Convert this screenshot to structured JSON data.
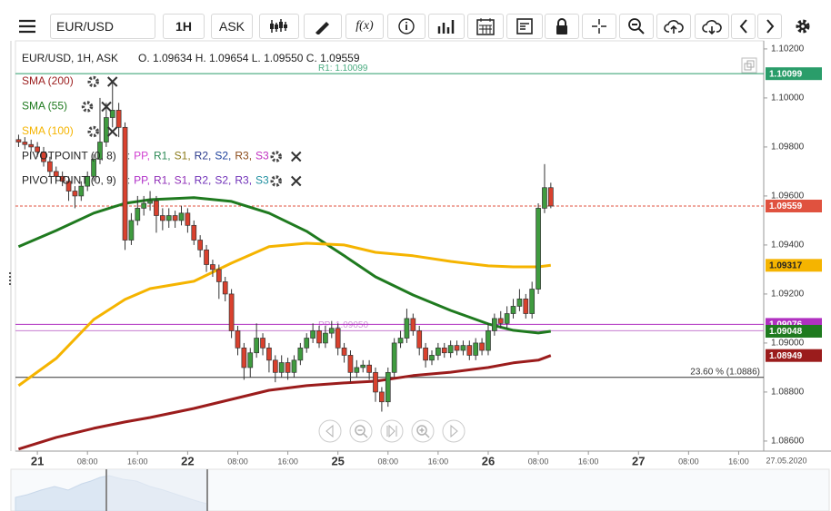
{
  "toolbar": {
    "symbol": "EUR/USD",
    "interval": "1H",
    "side": "ASK",
    "function_button": "f(x)"
  },
  "legend": {
    "symbol": "EUR/USD, 1H, ASK",
    "ohlc": "O. 1.09634 H. 1.09654 L. 1.09550 C. 1.09559"
  },
  "chart_data": {
    "type": "candlestick",
    "up_color": "#3f9b3f",
    "down_color": "#d9412e",
    "xlim": [
      -0.5,
      119
    ],
    "ylim": [
      1.08559,
      1.10233
    ],
    "xticks": [
      {
        "value": 3,
        "label": "21"
      },
      {
        "value": 11,
        "label": "08:00"
      },
      {
        "value": 19,
        "label": "16:00"
      },
      {
        "value": 27,
        "label": "22"
      },
      {
        "value": 35,
        "label": "08:00"
      },
      {
        "value": 43,
        "label": "16:00"
      },
      {
        "value": 51,
        "label": "25"
      },
      {
        "value": 59,
        "label": "08:00"
      },
      {
        "value": 67,
        "label": "16:00"
      },
      {
        "value": 75,
        "label": "26"
      },
      {
        "value": 83,
        "label": "08:00"
      },
      {
        "value": 91,
        "label": "16:00"
      },
      {
        "value": 99,
        "label": "27"
      },
      {
        "value": 107,
        "label": "08:00"
      },
      {
        "value": 115,
        "label": "16:00"
      }
    ],
    "date_label": "27.05.2020",
    "yticks": [
      {
        "value": 1.102,
        "label": "1.10200"
      },
      {
        "value": 1.1,
        "label": "1.10000"
      },
      {
        "value": 1.098,
        "label": "1.09800"
      },
      {
        "value": 1.096,
        "label": "1.09600"
      },
      {
        "value": 1.094,
        "label": "1.09400"
      },
      {
        "value": 1.092,
        "label": "1.09200"
      },
      {
        "value": 1.09,
        "label": "1.09000"
      },
      {
        "value": 1.088,
        "label": "1.08800"
      },
      {
        "value": 1.086,
        "label": "1.08600"
      }
    ],
    "candles": {
      "x": [
        0,
        1,
        2,
        3,
        4,
        5,
        6,
        7,
        8,
        9,
        10,
        11,
        12,
        13,
        14,
        15,
        16,
        17,
        18,
        19,
        20,
        21,
        22,
        23,
        24,
        25,
        26,
        27,
        28,
        29,
        30,
        31,
        32,
        33,
        34,
        35,
        36,
        37,
        38,
        39,
        40,
        41,
        42,
        43,
        44,
        45,
        46,
        47,
        48,
        49,
        50,
        51,
        52,
        53,
        54,
        55,
        56,
        57,
        58,
        59,
        60,
        61,
        62,
        63,
        64,
        65,
        66,
        67,
        68,
        69,
        70,
        71,
        72,
        73,
        74,
        75,
        76,
        77,
        78,
        79,
        80,
        81,
        82,
        83,
        84,
        85
      ],
      "open": [
        1.0983,
        1.0982,
        1.0981,
        1.098,
        1.0978,
        1.0974,
        1.097,
        1.0968,
        1.0966,
        1.0962,
        1.096,
        1.0964,
        1.0968,
        1.0975,
        1.0982,
        1.0992,
        1.0995,
        1.0988,
        1.0942,
        1.095,
        1.0955,
        1.0957,
        1.0958,
        1.0952,
        1.095,
        1.0952,
        1.095,
        1.0953,
        1.0948,
        1.0942,
        1.0938,
        1.0932,
        1.093,
        1.0925,
        1.092,
        1.0905,
        1.0898,
        1.089,
        1.0896,
        1.0902,
        1.0898,
        1.0893,
        1.0888,
        1.0892,
        1.0888,
        1.0893,
        1.0898,
        1.0902,
        1.0905,
        1.09,
        1.0904,
        1.0906,
        1.0898,
        1.0895,
        1.0888,
        1.089,
        1.0891,
        1.0888,
        1.088,
        1.0876,
        1.0888,
        1.09,
        1.0902,
        1.091,
        1.0905,
        1.0898,
        1.0893,
        1.0895,
        1.0898,
        1.0896,
        1.0899,
        1.0897,
        1.0899,
        1.0895,
        1.09,
        1.0897,
        1.0905,
        1.091,
        1.0908,
        1.0912,
        1.0915,
        1.0918,
        1.0912,
        1.0922,
        1.0955,
        1.09634
      ],
      "high": [
        1.0985,
        1.0984,
        1.0983,
        1.0982,
        1.098,
        1.0976,
        1.0972,
        1.097,
        1.0968,
        1.0964,
        1.0966,
        1.097,
        1.0977,
        1.1,
        1.0998,
        1.1007,
        1.0998,
        1.099,
        1.0953,
        1.096,
        1.096,
        1.0962,
        1.096,
        1.0955,
        1.0955,
        1.0954,
        1.0956,
        1.0955,
        1.095,
        1.0944,
        1.094,
        1.0934,
        1.0932,
        1.0927,
        1.0922,
        1.0907,
        1.09,
        1.0898,
        1.0908,
        1.0904,
        1.09,
        1.0895,
        1.0895,
        1.0894,
        1.0895,
        1.09,
        1.0904,
        1.0908,
        1.0907,
        1.0907,
        1.0909,
        1.0908,
        1.09,
        1.0897,
        1.0893,
        1.0893,
        1.0893,
        1.089,
        1.0882,
        1.089,
        1.0902,
        1.0905,
        1.0914,
        1.0912,
        1.0907,
        1.09,
        1.0897,
        1.09,
        1.09,
        1.0901,
        1.0901,
        1.0901,
        1.0901,
        1.0902,
        1.0902,
        1.0908,
        1.0912,
        1.0913,
        1.0915,
        1.0918,
        1.0922,
        1.092,
        1.0925,
        1.0957,
        1.0973,
        1.09654
      ],
      "low": [
        1.098,
        1.0979,
        1.0978,
        1.0976,
        1.0972,
        1.0968,
        1.0966,
        1.0964,
        1.0958,
        1.0955,
        1.0958,
        1.0962,
        1.0966,
        1.0973,
        1.098,
        1.0988,
        1.0984,
        1.0938,
        1.094,
        1.0948,
        1.0952,
        1.0954,
        1.0945,
        1.0946,
        1.0947,
        1.0947,
        1.0948,
        1.0945,
        1.094,
        1.0935,
        1.0929,
        1.0927,
        1.0918,
        1.0917,
        1.0902,
        1.0895,
        1.0885,
        1.0886,
        1.0894,
        1.0895,
        1.0888,
        1.0884,
        1.0886,
        1.0885,
        1.0886,
        1.0891,
        1.0896,
        1.09,
        1.0898,
        1.0898,
        1.0902,
        1.0895,
        1.0892,
        1.0884,
        1.0886,
        1.0888,
        1.0885,
        1.0876,
        1.0872,
        1.0874,
        1.0886,
        1.0898,
        1.09,
        1.0903,
        1.0895,
        1.089,
        1.0891,
        1.0893,
        1.0894,
        1.0894,
        1.0895,
        1.0895,
        1.0893,
        1.0893,
        1.0895,
        1.0895,
        1.0903,
        1.0906,
        1.0906,
        1.091,
        1.0913,
        1.091,
        1.091,
        1.092,
        1.0953,
        1.0955
      ],
      "close": [
        1.0982,
        1.0981,
        1.098,
        1.0978,
        1.0974,
        1.097,
        1.0968,
        1.0966,
        1.0962,
        1.096,
        1.0964,
        1.0968,
        1.0975,
        1.0982,
        1.0992,
        1.0995,
        1.0988,
        1.0942,
        1.095,
        1.0955,
        1.0957,
        1.0958,
        1.0952,
        1.095,
        1.0952,
        1.095,
        1.0953,
        1.0948,
        1.0942,
        1.0938,
        1.0932,
        1.093,
        1.0925,
        1.092,
        1.0905,
        1.0898,
        1.089,
        1.0896,
        1.0902,
        1.0898,
        1.0893,
        1.0888,
        1.0892,
        1.0888,
        1.0893,
        1.0898,
        1.0902,
        1.0905,
        1.09,
        1.0904,
        1.0906,
        1.0898,
        1.0895,
        1.0888,
        1.089,
        1.0891,
        1.0888,
        1.088,
        1.0876,
        1.0888,
        1.09,
        1.0902,
        1.091,
        1.0905,
        1.0898,
        1.0893,
        1.0895,
        1.0898,
        1.0896,
        1.0899,
        1.0897,
        1.0899,
        1.0895,
        1.09,
        1.0897,
        1.0905,
        1.091,
        1.0908,
        1.0912,
        1.0915,
        1.0918,
        1.0912,
        1.0922,
        1.0955,
        1.09634,
        1.09559
      ]
    },
    "series": [
      {
        "name": "SMA (200)",
        "color": "#9b1c1c",
        "x": [
          0,
          6,
          12,
          17,
          21,
          28,
          34,
          40,
          46,
          52,
          57,
          63,
          69,
          75,
          79,
          83,
          85
        ],
        "values": [
          1.08567,
          1.08615,
          1.08652,
          1.08678,
          1.08696,
          1.08733,
          1.0877,
          1.08807,
          1.08826,
          1.08837,
          1.08844,
          1.08867,
          1.08881,
          1.089,
          1.08919,
          1.0893,
          1.08949
        ]
      },
      {
        "name": "SMA (55)",
        "color": "#1f7a1f",
        "x": [
          0,
          6,
          12,
          17,
          21,
          28,
          34,
          40,
          46,
          52,
          57,
          63,
          69,
          75,
          79,
          83,
          85
        ],
        "values": [
          1.09393,
          1.09459,
          1.0953,
          1.0957,
          1.09585,
          1.09593,
          1.09578,
          1.0953,
          1.09456,
          1.09356,
          1.0927,
          1.09196,
          1.09133,
          1.09078,
          1.09052,
          1.09041,
          1.09048
        ]
      },
      {
        "name": "SMA (100)",
        "color": "#f5b400",
        "x": [
          0,
          6,
          12,
          17,
          21,
          28,
          34,
          40,
          46,
          52,
          57,
          63,
          69,
          75,
          79,
          83,
          85
        ],
        "values": [
          1.08826,
          1.08937,
          1.09096,
          1.09178,
          1.09222,
          1.09252,
          1.09326,
          1.09393,
          1.09407,
          1.094,
          1.0937,
          1.09356,
          1.09333,
          1.09315,
          1.09311,
          1.09311,
          1.09317
        ]
      }
    ],
    "indicators": [
      {
        "name": "PIVOTPOINT (0, 8)",
        "items": [
          {
            "text": ":",
            "color": "#666666"
          },
          {
            "text": "PP,",
            "color": "#d13fd1"
          },
          {
            "text": "R1,",
            "color": "#2e8b57"
          },
          {
            "text": "S1,",
            "color": "#8b7a1a"
          },
          {
            "text": "R2,",
            "color": "#2b3a8c"
          },
          {
            "text": "S2,",
            "color": "#1c3f9b"
          },
          {
            "text": "R3,",
            "color": "#8b4a1a"
          },
          {
            "text": "S3",
            "color": "#c030c0"
          }
        ]
      },
      {
        "name": "PIVOTPOINT (0, 9)",
        "items": [
          {
            "text": ":",
            "color": "#666666"
          },
          {
            "text": "PP,",
            "color": "#b030c8"
          },
          {
            "text": "R1,",
            "color": "#9030b8"
          },
          {
            "text": "S1,",
            "color": "#9030b8"
          },
          {
            "text": "R2,",
            "color": "#7030b8"
          },
          {
            "text": "S2,",
            "color": "#7030b8"
          },
          {
            "text": "R3,",
            "color": "#7030b8"
          },
          {
            "text": "S3",
            "color": "#1f8fa0"
          }
        ]
      }
    ],
    "hlines": [
      {
        "label": "R1: 1.10099",
        "value": 1.10099,
        "color": "#2a9d6a",
        "tag": true
      },
      {
        "label": "PP: 1.09050",
        "tag_label": "1.09050",
        "value": 1.0905,
        "color": "#c77dd0",
        "tag": true
      },
      {
        "value": 1.09076,
        "color": "#b030c0",
        "tag": true
      },
      {
        "label": "23.60 % (1.0886)",
        "value": 1.0886,
        "color": "#333333",
        "label_at": "right"
      },
      {
        "value": 1.09559,
        "color": "#e0523f",
        "tag": true,
        "dashed": true
      }
    ]
  }
}
